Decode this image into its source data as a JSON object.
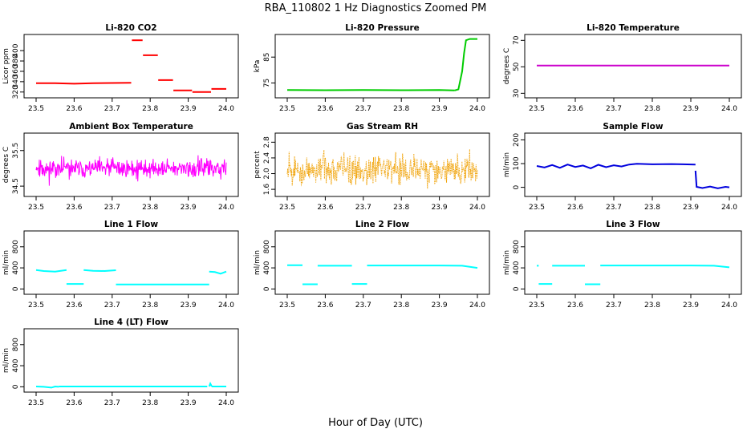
{
  "title": "RBA_110802  1 Hz Diagnostics Zoomed PM",
  "xlabel": "Hour of Day (UTC)",
  "chart_data": [
    {
      "type": "line",
      "title": "Li-820 CO2",
      "ylabel": "Licor ppm",
      "color": "#ff0000",
      "xlim": [
        23.5,
        24.0
      ],
      "ylim": [
        315,
        425
      ],
      "xticks": [
        "23.5",
        "23.6",
        "23.7",
        "23.8",
        "23.9",
        "24.0"
      ],
      "yticks": [
        "320",
        "340",
        "360",
        "380",
        "400"
      ],
      "segments": [
        {
          "x": [
            23.5,
            23.55,
            23.6,
            23.65,
            23.75
          ],
          "y": [
            337,
            337,
            336,
            337,
            338
          ]
        },
        {
          "x": [
            23.752,
            23.76,
            23.78
          ],
          "y": [
            420,
            420,
            420
          ]
        },
        {
          "x": [
            23.781,
            23.8,
            23.82
          ],
          "y": [
            391,
            391,
            391
          ]
        },
        {
          "x": [
            23.821,
            23.84,
            23.86
          ],
          "y": [
            343,
            343,
            343
          ]
        },
        {
          "x": [
            23.861,
            23.88,
            23.91
          ],
          "y": [
            323,
            323,
            323
          ]
        },
        {
          "x": [
            23.911,
            23.93,
            23.96
          ],
          "y": [
            320,
            320,
            320
          ]
        },
        {
          "x": [
            23.961,
            23.98,
            24.0
          ],
          "y": [
            326,
            326,
            326
          ]
        }
      ]
    },
    {
      "type": "line",
      "title": "Li-820 Pressure",
      "ylabel": "kPa",
      "color": "#00cc00",
      "xlim": [
        23.5,
        24.0
      ],
      "ylim": [
        70.5,
        92.5
      ],
      "xticks": [
        "23.5",
        "23.6",
        "23.7",
        "23.8",
        "23.9",
        "24.0"
      ],
      "yticks": [
        "75",
        "85"
      ],
      "segments": [
        {
          "x": [
            23.5,
            23.6,
            23.7,
            23.8,
            23.9,
            23.94
          ],
          "y": [
            72.3,
            72.2,
            72.3,
            72.2,
            72.3,
            72.1
          ]
        },
        {
          "x": [
            23.94,
            23.95,
            23.96,
            23.965,
            23.97,
            23.98,
            24.0
          ],
          "y": [
            72.1,
            72.5,
            79.5,
            86.5,
            91.5,
            92.0,
            92.0
          ]
        }
      ]
    },
    {
      "type": "line",
      "title": "Li-820 Temperature",
      "ylabel": "degrees C",
      "color": "#cc00cc",
      "xlim": [
        23.5,
        24.0
      ],
      "ylim": [
        29.0,
        72.0
      ],
      "xticks": [
        "23.5",
        "23.6",
        "23.7",
        "23.8",
        "23.9",
        "24.0"
      ],
      "yticks": [
        "30",
        "50",
        "70"
      ],
      "segments": [
        {
          "x": [
            23.5,
            24.0
          ],
          "y": [
            51.0,
            51.0
          ]
        }
      ]
    },
    {
      "type": "line",
      "title": "Ambient Box Temperature",
      "ylabel": "degrees C",
      "color": "#ff00ff",
      "xlim": [
        23.5,
        24.0
      ],
      "ylim": [
        34.3,
        35.9
      ],
      "xticks": [
        "23.5",
        "23.6",
        "23.7",
        "23.8",
        "23.9",
        "24.0"
      ],
      "yticks": [
        "34.5",
        "35.5"
      ],
      "noise": {
        "x": [
          23.5,
          24.0
        ],
        "center": 35.0,
        "amp": 0.38,
        "n": 420,
        "seed": 11
      }
    },
    {
      "type": "line",
      "title": "Gas Stream RH",
      "ylabel": "percent",
      "color": "#f0a000",
      "xlim": [
        23.5,
        24.0
      ],
      "ylim": [
        1.5,
        2.95
      ],
      "xticks": [
        "23.5",
        "23.6",
        "23.7",
        "23.8",
        "23.9",
        "24.0"
      ],
      "yticks": [
        "1.6",
        "2.0",
        "2.4",
        "2.8"
      ],
      "noise": {
        "x": [
          23.5,
          24.0
        ],
        "center": 2.1,
        "amp": 0.55,
        "n": 420,
        "seed": 5,
        "dotted": true
      }
    },
    {
      "type": "line",
      "title": "Sample Flow",
      "ylabel": "ml/min",
      "color": "#0000dd",
      "xlim": [
        23.5,
        24.0
      ],
      "ylim": [
        -25,
        215
      ],
      "xticks": [
        "23.5",
        "23.6",
        "23.7",
        "23.8",
        "23.9",
        "24.0"
      ],
      "yticks": [
        "0",
        "100",
        "200"
      ],
      "segments": [
        {
          "x": [
            23.5,
            23.52,
            23.54,
            23.56,
            23.58,
            23.6,
            23.62,
            23.64,
            23.66,
            23.68,
            23.7,
            23.72,
            23.74,
            23.76,
            23.8,
            23.85,
            23.88,
            23.912
          ],
          "y": [
            90,
            84,
            94,
            82,
            96,
            86,
            92,
            80,
            95,
            85,
            93,
            88,
            96,
            99,
            97,
            98,
            97,
            96
          ]
        },
        {
          "x": [
            23.912,
            23.915,
            23.93,
            23.95,
            23.97,
            23.99,
            24.0
          ],
          "y": [
            70,
            2,
            -3,
            3,
            -4,
            2,
            0
          ]
        }
      ]
    },
    {
      "type": "line",
      "title": "Line 1 Flow",
      "ylabel": "ml/min",
      "color": "#00ffff",
      "xlim": [
        23.5,
        24.0
      ],
      "ylim": [
        -40,
        1040
      ],
      "xticks": [
        "23.5",
        "23.6",
        "23.7",
        "23.8",
        "23.9",
        "24.0"
      ],
      "yticks": [
        "0",
        "400",
        "800"
      ],
      "segments": [
        {
          "x": [
            23.5,
            23.52,
            23.55,
            23.58
          ],
          "y": [
            360,
            340,
            330,
            360
          ]
        },
        {
          "x": [
            23.58,
            23.625
          ],
          "y": [
            95,
            95
          ]
        },
        {
          "x": [
            23.625,
            23.65,
            23.68,
            23.71
          ],
          "y": [
            360,
            345,
            340,
            355
          ]
        },
        {
          "x": [
            23.71,
            23.8,
            23.9,
            23.955
          ],
          "y": [
            85,
            85,
            85,
            85
          ]
        },
        {
          "x": [
            23.955,
            23.97,
            23.985,
            24.0
          ],
          "y": [
            330,
            320,
            290,
            330
          ]
        }
      ]
    },
    {
      "type": "line",
      "title": "Line 2 Flow",
      "ylabel": "ml/min",
      "color": "#00ffff",
      "xlim": [
        23.5,
        24.0
      ],
      "ylim": [
        -40,
        1040
      ],
      "xticks": [
        "23.5",
        "23.6",
        "23.7",
        "23.8",
        "23.9",
        "24.0"
      ],
      "yticks": [
        "0",
        "400",
        "800"
      ],
      "segments": [
        {
          "x": [
            23.5,
            23.54
          ],
          "y": [
            450,
            450
          ]
        },
        {
          "x": [
            23.54,
            23.58
          ],
          "y": [
            90,
            90
          ]
        },
        {
          "x": [
            23.58,
            23.67
          ],
          "y": [
            440,
            440
          ]
        },
        {
          "x": [
            23.67,
            23.71
          ],
          "y": [
            95,
            95
          ]
        },
        {
          "x": [
            23.71,
            23.8,
            23.9,
            23.96,
            24.0
          ],
          "y": [
            445,
            445,
            445,
            440,
            400
          ]
        }
      ]
    },
    {
      "type": "line",
      "title": "Line 3 Flow",
      "ylabel": "ml/min",
      "color": "#00ffff",
      "xlim": [
        23.5,
        24.0
      ],
      "ylim": [
        -40,
        1040
      ],
      "xticks": [
        "23.5",
        "23.6",
        "23.7",
        "23.8",
        "23.9",
        "24.0"
      ],
      "yticks": [
        "0",
        "400",
        "800"
      ],
      "segments": [
        {
          "x": [
            23.5,
            23.505
          ],
          "y": [
            440,
            440
          ]
        },
        {
          "x": [
            23.505,
            23.54
          ],
          "y": [
            95,
            95
          ]
        },
        {
          "x": [
            23.54,
            23.625
          ],
          "y": [
            440,
            440
          ]
        },
        {
          "x": [
            23.625,
            23.665
          ],
          "y": [
            90,
            90
          ]
        },
        {
          "x": [
            23.665,
            23.8,
            23.9,
            23.96,
            24.0
          ],
          "y": [
            445,
            445,
            445,
            440,
            410
          ]
        }
      ]
    },
    {
      "type": "line",
      "title": "Line 4 (LT) Flow",
      "ylabel": "ml/min",
      "color": "#00ffff",
      "xlim": [
        23.5,
        24.0
      ],
      "ylim": [
        -40,
        1040
      ],
      "xticks": [
        "23.5",
        "23.6",
        "23.7",
        "23.8",
        "23.9",
        "24.0"
      ],
      "yticks": [
        "0",
        "400",
        "800"
      ],
      "segments": [
        {
          "x": [
            23.5,
            23.52,
            23.54,
            23.55,
            23.56
          ],
          "y": [
            5,
            0,
            -15,
            5,
            0
          ]
        },
        {
          "x": [
            23.56,
            23.7,
            23.9,
            23.95
          ],
          "y": [
            5,
            5,
            5,
            5
          ]
        },
        {
          "x": [
            23.955,
            23.958,
            23.962
          ],
          "y": [
            5,
            60,
            5
          ]
        },
        {
          "x": [
            23.962,
            24.0
          ],
          "y": [
            5,
            5
          ]
        }
      ]
    }
  ]
}
